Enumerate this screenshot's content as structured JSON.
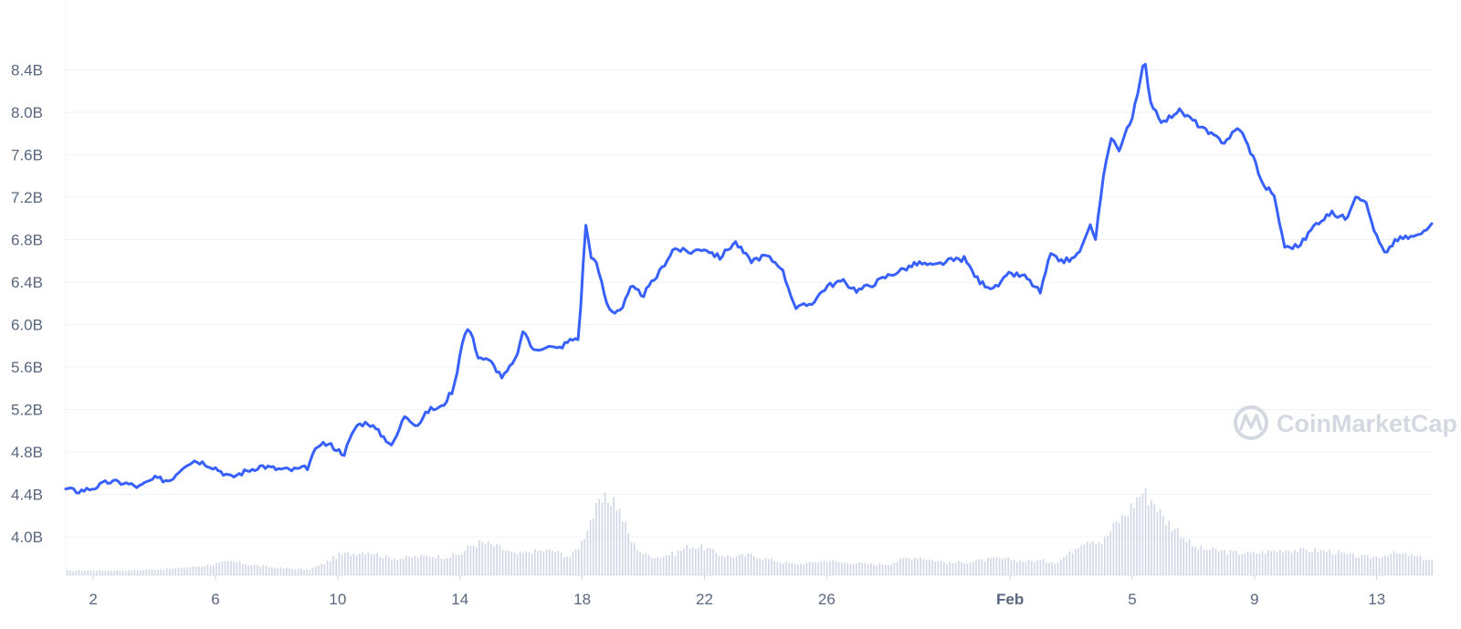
{
  "chart_data": {
    "type": "line",
    "title": "",
    "xlabel": "",
    "ylabel": "",
    "y_ticks": [
      "4.0B",
      "4.4B",
      "4.8B",
      "5.2B",
      "5.6B",
      "6.0B",
      "6.4B",
      "6.8B",
      "7.2B",
      "7.6B",
      "8.0B",
      "8.4B"
    ],
    "y_tick_values": [
      4.0,
      4.4,
      4.8,
      5.2,
      5.6,
      6.0,
      6.4,
      6.8,
      7.2,
      7.6,
      8.0,
      8.4
    ],
    "ylim": [
      3.64,
      8.8
    ],
    "y_unit": "B",
    "x_ticks": [
      {
        "label": "2",
        "day": 2,
        "bold": false
      },
      {
        "label": "6",
        "day": 6,
        "bold": false
      },
      {
        "label": "10",
        "day": 10,
        "bold": false
      },
      {
        "label": "14",
        "day": 14,
        "bold": false
      },
      {
        "label": "18",
        "day": 18,
        "bold": false
      },
      {
        "label": "22",
        "day": 22,
        "bold": false
      },
      {
        "label": "26",
        "day": 26,
        "bold": false
      },
      {
        "label": "Feb",
        "day": 32,
        "bold": true
      },
      {
        "label": "5",
        "day": 36,
        "bold": false
      },
      {
        "label": "9",
        "day": 40,
        "bold": false
      },
      {
        "label": "13",
        "day": 44,
        "bold": false
      }
    ],
    "xlim": [
      1.1,
      45.8
    ],
    "grid": true,
    "series": [
      {
        "color": "#3861fb",
        "x": [
          1.1,
          1.5,
          2.0,
          2.5,
          3.0,
          3.5,
          4.0,
          4.5,
          5.0,
          5.3,
          5.6,
          6.0,
          6.5,
          7.0,
          7.5,
          8.0,
          8.5,
          9.0,
          9.4,
          9.8,
          10.2,
          10.6,
          11.0,
          11.4,
          11.8,
          12.2,
          12.6,
          13.0,
          13.4,
          13.8,
          14.1,
          14.3,
          14.6,
          15.0,
          15.4,
          15.8,
          16.1,
          16.4,
          16.8,
          17.2,
          17.6,
          17.9,
          18.1,
          18.3,
          18.5,
          18.8,
          19.0,
          19.3,
          19.6,
          20.0,
          20.5,
          21.0,
          21.5,
          22.0,
          22.5,
          23.0,
          23.5,
          24.0,
          24.5,
          25.0,
          25.5,
          26.0,
          26.5,
          27.0,
          27.5,
          28.0,
          28.5,
          29.0,
          29.5,
          30.0,
          30.5,
          31.0,
          31.5,
          32.0,
          32.5,
          33.0,
          33.3,
          33.7,
          34.1,
          34.4,
          34.6,
          34.8,
          35.0,
          35.3,
          35.6,
          35.8,
          36.0,
          36.2,
          36.4,
          36.6,
          37.0,
          37.5,
          38.0,
          38.5,
          39.0,
          39.5,
          40.0,
          40.3,
          40.6,
          41.0,
          41.5,
          42.0,
          42.5,
          43.0,
          43.3,
          43.6,
          44.0,
          44.3,
          44.6,
          45.0,
          45.4,
          45.8
        ],
        "y": [
          4.45,
          4.43,
          4.46,
          4.52,
          4.51,
          4.47,
          4.55,
          4.53,
          4.68,
          4.72,
          4.7,
          4.65,
          4.56,
          4.62,
          4.67,
          4.64,
          4.63,
          4.65,
          4.89,
          4.86,
          4.78,
          5.05,
          5.08,
          4.97,
          4.86,
          5.15,
          5.05,
          5.2,
          5.22,
          5.4,
          5.88,
          5.97,
          5.7,
          5.65,
          5.5,
          5.66,
          5.95,
          5.75,
          5.8,
          5.77,
          5.85,
          5.88,
          6.96,
          6.64,
          6.55,
          6.2,
          6.12,
          6.15,
          6.35,
          6.28,
          6.48,
          6.72,
          6.68,
          6.72,
          6.63,
          6.78,
          6.6,
          6.65,
          6.55,
          6.15,
          6.2,
          6.36,
          6.41,
          6.32,
          6.38,
          6.46,
          6.52,
          6.58,
          6.55,
          6.6,
          6.62,
          6.4,
          6.34,
          6.48,
          6.45,
          6.3,
          6.65,
          6.6,
          6.62,
          6.75,
          6.95,
          6.78,
          7.3,
          7.78,
          7.62,
          7.85,
          7.95,
          8.2,
          8.5,
          8.1,
          7.9,
          8.02,
          7.92,
          7.8,
          7.72,
          7.86,
          7.55,
          7.3,
          7.25,
          6.72,
          6.75,
          6.95,
          7.05,
          7.0,
          7.22,
          7.18,
          6.82,
          6.65,
          6.8,
          6.82,
          6.84,
          6.97
        ]
      }
    ],
    "volume_series": {
      "color": "#cfd6e4",
      "x": [
        1.1,
        3.0,
        4.5,
        5.5,
        6.5,
        7.0,
        8.0,
        9.0,
        9.5,
        10.0,
        10.5,
        11.0,
        11.5,
        12.0,
        12.5,
        13.0,
        13.5,
        14.0,
        14.3,
        14.7,
        15.3,
        15.8,
        16.3,
        17.0,
        17.6,
        18.0,
        18.2,
        18.6,
        19.0,
        19.3,
        19.6,
        20.0,
        20.5,
        21.0,
        21.5,
        22.0,
        22.5,
        23.0,
        23.5,
        24.0,
        24.5,
        25.0,
        25.5,
        26.0,
        26.5,
        27.0,
        27.5,
        28.0,
        28.5,
        29.0,
        29.5,
        30.0,
        30.5,
        31.0,
        31.5,
        32.0,
        32.5,
        33.0,
        33.5,
        34.0,
        34.3,
        34.6,
        35.0,
        35.4,
        35.8,
        36.0,
        36.3,
        36.7,
        37.0,
        37.5,
        38.0,
        38.5,
        39.0,
        39.5,
        40.0,
        40.5,
        41.0,
        41.5,
        42.0,
        42.5,
        43.0,
        43.5,
        44.0,
        44.5,
        45.0,
        45.8
      ],
      "v": [
        0.05,
        0.05,
        0.07,
        0.1,
        0.15,
        0.12,
        0.08,
        0.06,
        0.12,
        0.22,
        0.24,
        0.26,
        0.2,
        0.18,
        0.2,
        0.21,
        0.2,
        0.23,
        0.32,
        0.36,
        0.3,
        0.22,
        0.26,
        0.27,
        0.2,
        0.38,
        0.58,
        0.8,
        0.84,
        0.62,
        0.36,
        0.22,
        0.2,
        0.24,
        0.32,
        0.3,
        0.22,
        0.2,
        0.22,
        0.18,
        0.14,
        0.12,
        0.14,
        0.16,
        0.14,
        0.13,
        0.12,
        0.12,
        0.18,
        0.2,
        0.16,
        0.13,
        0.14,
        0.16,
        0.18,
        0.17,
        0.15,
        0.16,
        0.14,
        0.26,
        0.36,
        0.4,
        0.36,
        0.55,
        0.68,
        0.78,
        0.92,
        0.8,
        0.62,
        0.48,
        0.3,
        0.28,
        0.26,
        0.24,
        0.24,
        0.26,
        0.28,
        0.27,
        0.27,
        0.26,
        0.22,
        0.2,
        0.2,
        0.24,
        0.22,
        0.16
      ]
    },
    "watermark": "CoinMarketCap"
  }
}
